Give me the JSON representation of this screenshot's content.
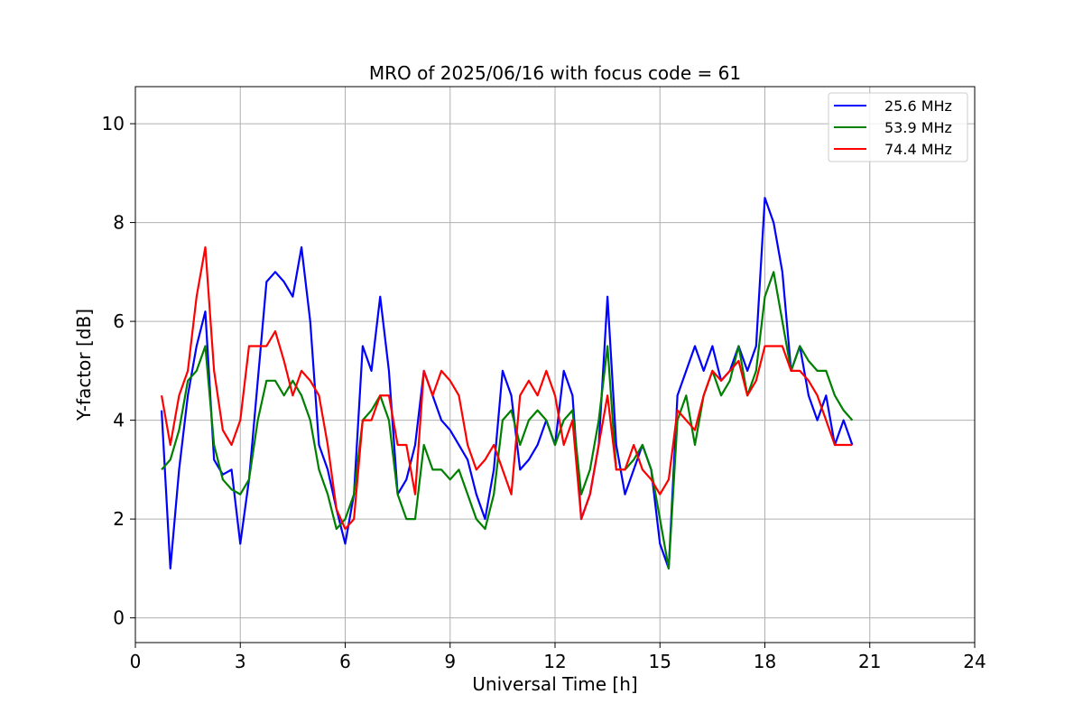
{
  "chart_data": {
    "type": "line",
    "title": "MRO of 2025/06/16 with focus code = 61",
    "xlabel": "Universal Time [h]",
    "ylabel": "Y-factor [dB]",
    "xlim": [
      0,
      24
    ],
    "ylim": [
      -0.5,
      10.75
    ],
    "xticks": [
      0,
      3,
      6,
      9,
      12,
      15,
      18,
      21,
      24
    ],
    "yticks": [
      0,
      2,
      4,
      6,
      8,
      10
    ],
    "grid": true,
    "legend_position": "top-right",
    "x_step": 0.25,
    "x_start": 0.75,
    "series": [
      {
        "name": "25.6 MHz",
        "color": "#0000ff",
        "values": [
          4.2,
          1.0,
          3.0,
          4.5,
          5.5,
          6.2,
          3.2,
          2.9,
          3.0,
          1.5,
          2.8,
          4.8,
          6.8,
          7.0,
          6.8,
          6.5,
          7.5,
          6.0,
          3.5,
          3.0,
          2.2,
          1.5,
          2.5,
          5.5,
          5.0,
          6.5,
          5.0,
          2.5,
          2.8,
          3.5,
          5.0,
          4.5,
          4.0,
          3.8,
          3.5,
          3.2,
          2.5,
          2.0,
          3.0,
          5.0,
          4.5,
          3.0,
          3.2,
          3.5,
          4.0,
          3.5,
          5.0,
          4.5,
          2.0,
          2.5,
          3.5,
          6.5,
          3.5,
          2.5,
          3.0,
          3.5,
          3.0,
          1.5,
          1.0,
          4.5,
          5.0,
          5.5,
          5.0,
          5.5,
          4.8,
          5.0,
          5.5,
          5.0,
          5.5,
          8.5,
          8.0,
          7.0,
          5.0,
          5.5,
          4.5,
          4.0,
          4.5,
          3.5,
          4.0,
          3.5
        ]
      },
      {
        "name": "53.9 MHz",
        "color": "#008000",
        "values": [
          3.0,
          3.2,
          3.8,
          4.8,
          5.0,
          5.5,
          3.5,
          2.8,
          2.6,
          2.5,
          2.8,
          4.0,
          4.8,
          4.8,
          4.5,
          4.8,
          4.5,
          4.0,
          3.0,
          2.5,
          1.8,
          2.0,
          2.5,
          4.0,
          4.2,
          4.5,
          4.0,
          2.5,
          2.0,
          2.0,
          3.5,
          3.0,
          3.0,
          2.8,
          3.0,
          2.5,
          2.0,
          1.8,
          2.5,
          4.0,
          4.2,
          3.5,
          4.0,
          4.2,
          4.0,
          3.5,
          4.0,
          4.2,
          2.5,
          3.0,
          4.0,
          5.5,
          3.0,
          3.0,
          3.2,
          3.5,
          3.0,
          2.0,
          1.0,
          4.0,
          4.5,
          3.5,
          4.5,
          5.0,
          4.5,
          4.8,
          5.5,
          4.5,
          5.0,
          6.5,
          7.0,
          6.0,
          5.0,
          5.5,
          5.2,
          5.0,
          5.0,
          4.5,
          4.2,
          4.0
        ]
      },
      {
        "name": "74.4 MHz",
        "color": "#ff0000",
        "values": [
          4.5,
          3.5,
          4.5,
          5.0,
          6.5,
          7.5,
          5.0,
          3.8,
          3.5,
          4.0,
          5.5,
          5.5,
          5.5,
          5.8,
          5.2,
          4.5,
          5.0,
          4.8,
          4.5,
          3.5,
          2.2,
          1.8,
          2.0,
          4.0,
          4.0,
          4.5,
          4.5,
          3.5,
          3.5,
          2.5,
          5.0,
          4.5,
          5.0,
          4.8,
          4.5,
          3.5,
          3.0,
          3.2,
          3.5,
          3.0,
          2.5,
          4.5,
          4.8,
          4.5,
          5.0,
          4.5,
          3.5,
          4.0,
          2.0,
          2.5,
          3.5,
          4.5,
          3.0,
          3.0,
          3.5,
          3.0,
          2.8,
          2.5,
          2.8,
          4.2,
          4.0,
          3.8,
          4.5,
          5.0,
          4.8,
          5.0,
          5.2,
          4.5,
          4.8,
          5.5,
          5.5,
          5.5,
          5.0,
          5.0,
          4.8,
          4.5,
          4.0,
          3.5,
          3.5,
          3.5
        ]
      }
    ]
  }
}
